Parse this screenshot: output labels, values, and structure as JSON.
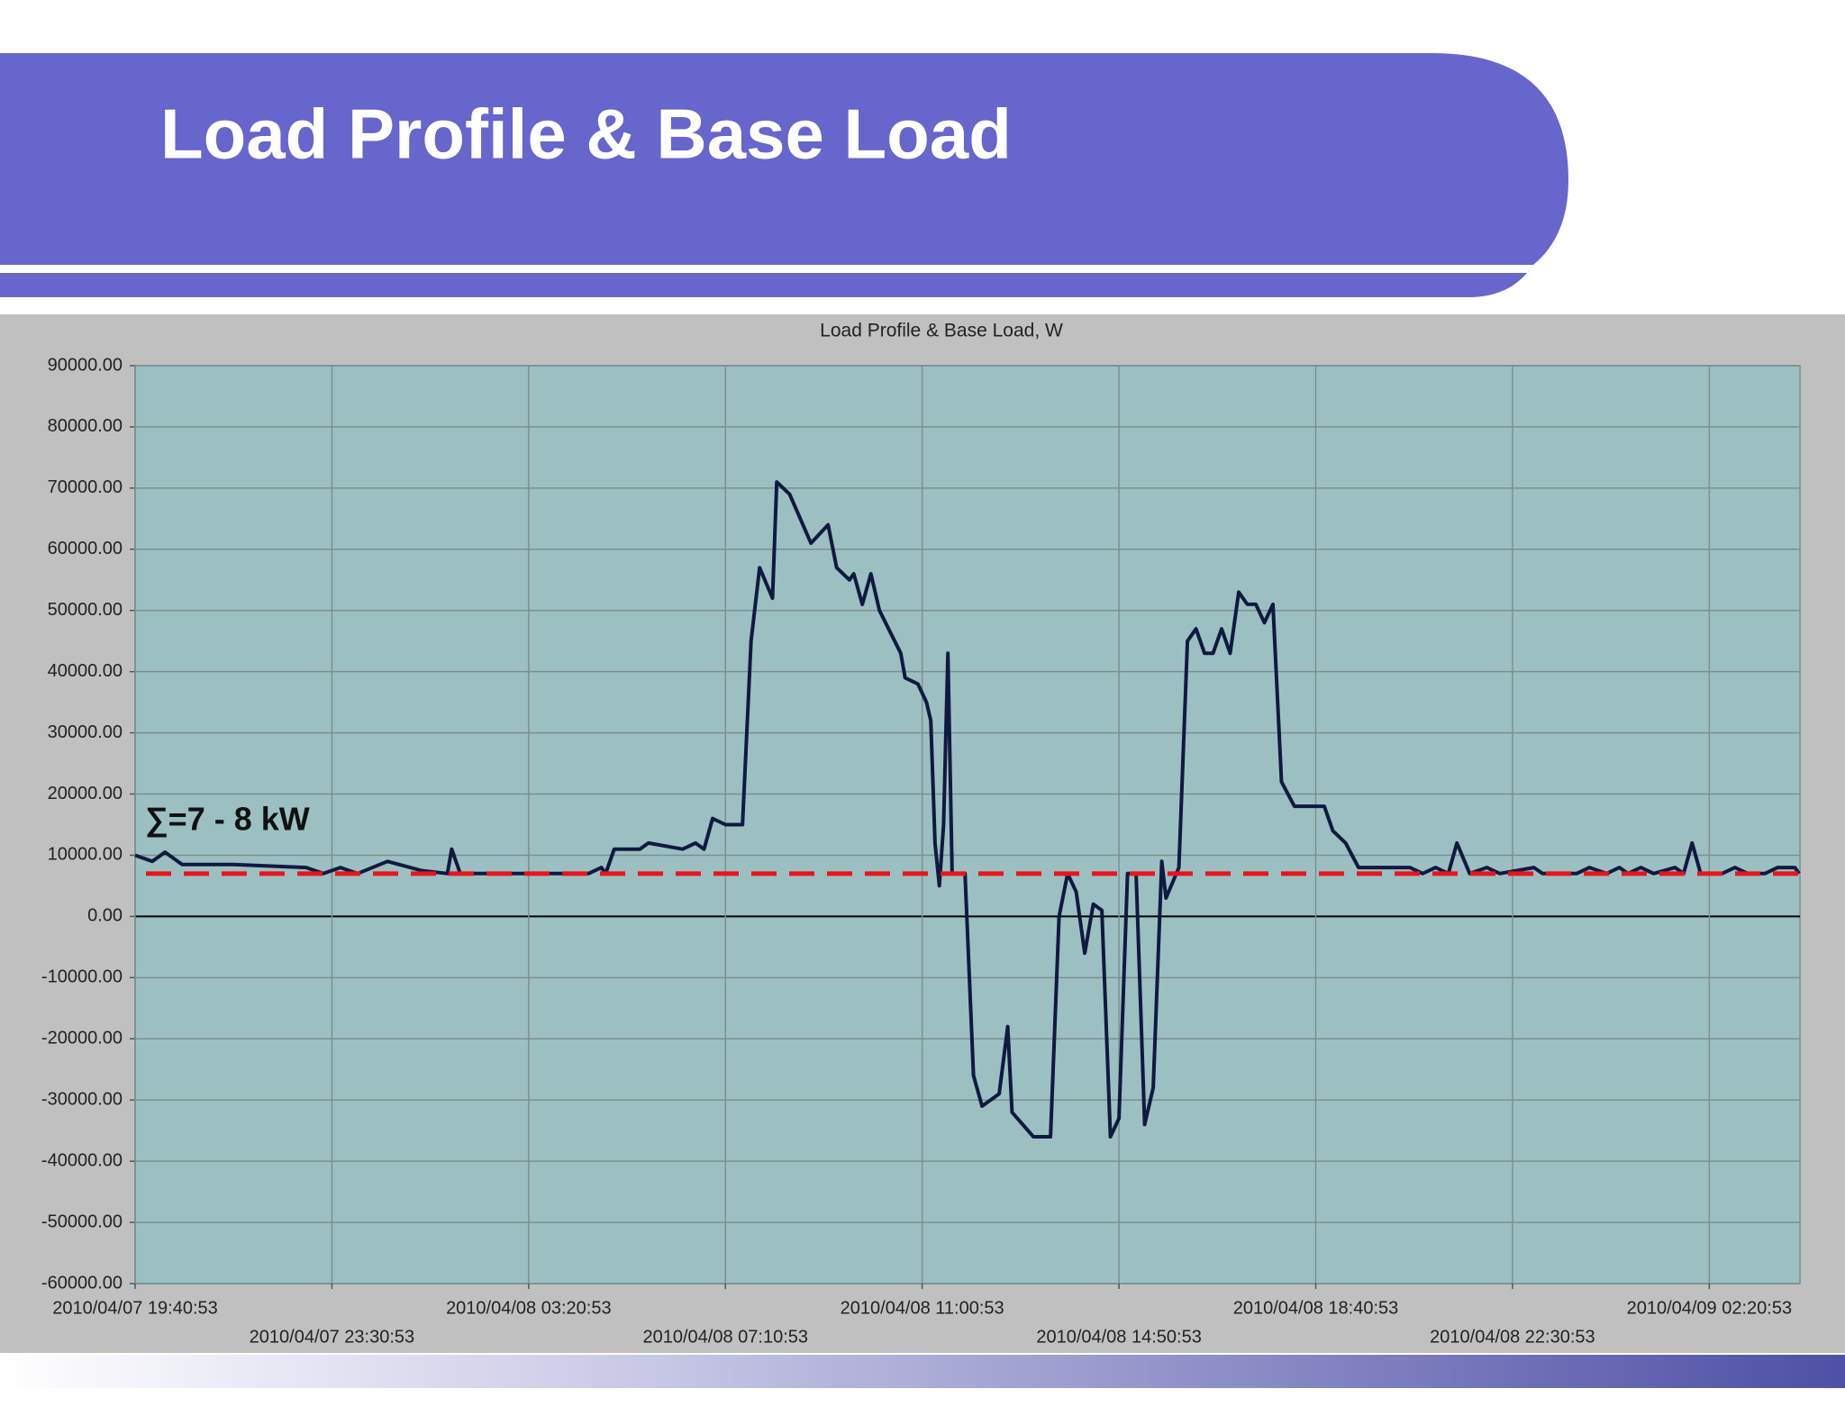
{
  "slide_title": "Load Profile & Base Load",
  "chart_data": {
    "type": "line",
    "title": "Load Profile & Base Load, W",
    "color": "#101a40",
    "annotations": [
      {
        "text": "∑=7 - 8 kW"
      }
    ],
    "reference_line": {
      "value": 7000,
      "color": "#e8141c",
      "style": "dashed"
    },
    "grid": true,
    "xlim": [
      "2010/04/07 19:40:53",
      "2010/04/09 04:06:53"
    ],
    "xticks": [
      "2010/04/07 19:40:53",
      "2010/04/07 23:30:53",
      "2010/04/08 03:20:53",
      "2010/04/08 07:10:53",
      "2010/04/08 11:00:53",
      "2010/04/08 14:50:53",
      "2010/04/08 18:40:53",
      "2010/04/08 22:30:53",
      "2010/04/09 02:20:53"
    ],
    "ylim": [
      -60000,
      90000
    ],
    "yticks": [
      {
        "value": -60000,
        "label": "-60000.00"
      },
      {
        "value": -50000,
        "label": "-50000.00"
      },
      {
        "value": -40000,
        "label": "-40000.00"
      },
      {
        "value": -30000,
        "label": "-30000.00"
      },
      {
        "value": -20000,
        "label": "-20000.00"
      },
      {
        "value": -10000,
        "label": "-10000.00"
      },
      {
        "value": 0,
        "label": "0.00"
      },
      {
        "value": 10000,
        "label": "10000.00"
      },
      {
        "value": 20000,
        "label": "20000.00"
      },
      {
        "value": 30000,
        "label": "30000.00"
      },
      {
        "value": 40000,
        "label": "40000.00"
      },
      {
        "value": 50000,
        "label": "50000.00"
      },
      {
        "value": 60000,
        "label": "60000.00"
      },
      {
        "value": 70000,
        "label": "70000.00"
      },
      {
        "value": 80000,
        "label": "80000.00"
      },
      {
        "value": 90000,
        "label": "90000.00"
      }
    ],
    "x": [
      "2010/04/07 19:40:53",
      "2010/04/07 20:00:53",
      "2010/04/07 20:15:53",
      "2010/04/07 20:35:53",
      "2010/04/07 21:35:53",
      "2010/04/07 23:00:53",
      "2010/04/07 23:20:53",
      "2010/04/07 23:40:53",
      "2010/04/08 00:00:53",
      "2010/04/08 00:35:53",
      "2010/04/08 01:15:53",
      "2010/04/08 01:45:53",
      "2010/04/08 01:50:53",
      "2010/04/08 02:00:53",
      "2010/04/08 04:30:53",
      "2010/04/08 04:45:53",
      "2010/04/08 04:50:53",
      "2010/04/08 05:00:53",
      "2010/04/08 05:30:53",
      "2010/04/08 05:40:53",
      "2010/04/08 06:20:53",
      "2010/04/08 06:35:53",
      "2010/04/08 06:45:53",
      "2010/04/08 06:55:53",
      "2010/04/08 07:10:53",
      "2010/04/08 07:30:53",
      "2010/04/08 07:40:53",
      "2010/04/08 07:50:53",
      "2010/04/08 08:05:53",
      "2010/04/08 08:10:53",
      "2010/04/08 08:25:53",
      "2010/04/08 08:50:53",
      "2010/04/08 09:10:53",
      "2010/04/08 09:20:53",
      "2010/04/08 09:35:53",
      "2010/04/08 09:40:53",
      "2010/04/08 09:50:53",
      "2010/04/08 10:00:53",
      "2010/04/08 10:10:53",
      "2010/04/08 10:35:53",
      "2010/04/08 10:40:53",
      "2010/04/08 10:55:53",
      "2010/04/08 11:05:53",
      "2010/04/08 11:10:53",
      "2010/04/08 11:15:53",
      "2010/04/08 11:20:53",
      "2010/04/08 11:25:53",
      "2010/04/08 11:30:53",
      "2010/04/08 11:35:53",
      "2010/04/08 11:50:53",
      "2010/04/08 12:00:53",
      "2010/04/08 12:10:53",
      "2010/04/08 12:30:53",
      "2010/04/08 12:40:53",
      "2010/04/08 12:45:53",
      "2010/04/08 13:10:53",
      "2010/04/08 13:30:53",
      "2010/04/08 13:40:53",
      "2010/04/08 13:50:53",
      "2010/04/08 14:00:53",
      "2010/04/08 14:10:53",
      "2010/04/08 14:20:53",
      "2010/04/08 14:30:53",
      "2010/04/08 14:40:53",
      "2010/04/08 14:50:53",
      "2010/04/08 15:00:53",
      "2010/04/08 15:10:53",
      "2010/04/08 15:20:53",
      "2010/04/08 15:30:53",
      "2010/04/08 15:40:53",
      "2010/04/08 15:45:53",
      "2010/04/08 16:00:53",
      "2010/04/08 16:10:53",
      "2010/04/08 16:20:53",
      "2010/04/08 16:30:53",
      "2010/04/08 16:40:53",
      "2010/04/08 16:50:53",
      "2010/04/08 17:00:53",
      "2010/04/08 17:10:53",
      "2010/04/08 17:20:53",
      "2010/04/08 17:30:53",
      "2010/04/08 17:40:53",
      "2010/04/08 17:50:53",
      "2010/04/08 18:00:53",
      "2010/04/08 18:15:53",
      "2010/04/08 18:50:53",
      "2010/04/08 19:00:53",
      "2010/04/08 19:15:53",
      "2010/04/08 19:30:53",
      "2010/04/08 20:30:53",
      "2010/04/08 20:45:53",
      "2010/04/08 21:00:53",
      "2010/04/08 21:15:53",
      "2010/04/08 21:25:53",
      "2010/04/08 21:40:53",
      "2010/04/08 22:00:53",
      "2010/04/08 22:15:53",
      "2010/04/08 22:55:53",
      "2010/04/08 23:05:53",
      "2010/04/08 23:45:53",
      "2010/04/09 00:00:53",
      "2010/04/09 00:20:53",
      "2010/04/09 00:35:53",
      "2010/04/09 00:45:53",
      "2010/04/09 01:00:53",
      "2010/04/09 01:15:53",
      "2010/04/09 01:40:53",
      "2010/04/09 01:50:53",
      "2010/04/09 02:00:53",
      "2010/04/09 02:10:53",
      "2010/04/09 02:35:53",
      "2010/04/09 02:50:53",
      "2010/04/09 03:05:53",
      "2010/04/09 03:25:53",
      "2010/04/09 03:40:53",
      "2010/04/09 04:00:53",
      "2010/04/09 04:05:53"
    ],
    "values": [
      10000,
      9000,
      10500,
      8500,
      8500,
      8000,
      7000,
      8000,
      7000,
      9000,
      7500,
      7000,
      11000,
      7000,
      7000,
      8000,
      7000,
      11000,
      11000,
      12000,
      11000,
      12000,
      11000,
      16000,
      15000,
      15000,
      45000,
      57000,
      52000,
      71000,
      69000,
      61000,
      64000,
      57000,
      55000,
      56000,
      51000,
      56000,
      50000,
      43000,
      39000,
      38000,
      35000,
      32000,
      12000,
      5000,
      15000,
      43000,
      7000,
      7000,
      -26000,
      -31000,
      -29000,
      -18000,
      -32000,
      -36000,
      -36000,
      0,
      7000,
      4000,
      -6000,
      2000,
      1000,
      -36000,
      -33000,
      7000,
      7000,
      -34000,
      -28000,
      9000,
      3000,
      8000,
      45000,
      47000,
      43000,
      43000,
      47000,
      43000,
      53000,
      51000,
      51000,
      48000,
      51000,
      22000,
      18000,
      18000,
      14000,
      12000,
      8000,
      8000,
      7000,
      8000,
      7000,
      12000,
      7000,
      8000,
      7000,
      8000,
      7000,
      7000,
      8000,
      7000,
      8000,
      7000,
      8000,
      7000,
      8000,
      7000,
      12000,
      7000,
      7000,
      8000,
      7000,
      7000,
      8000,
      8000,
      7000
    ]
  }
}
